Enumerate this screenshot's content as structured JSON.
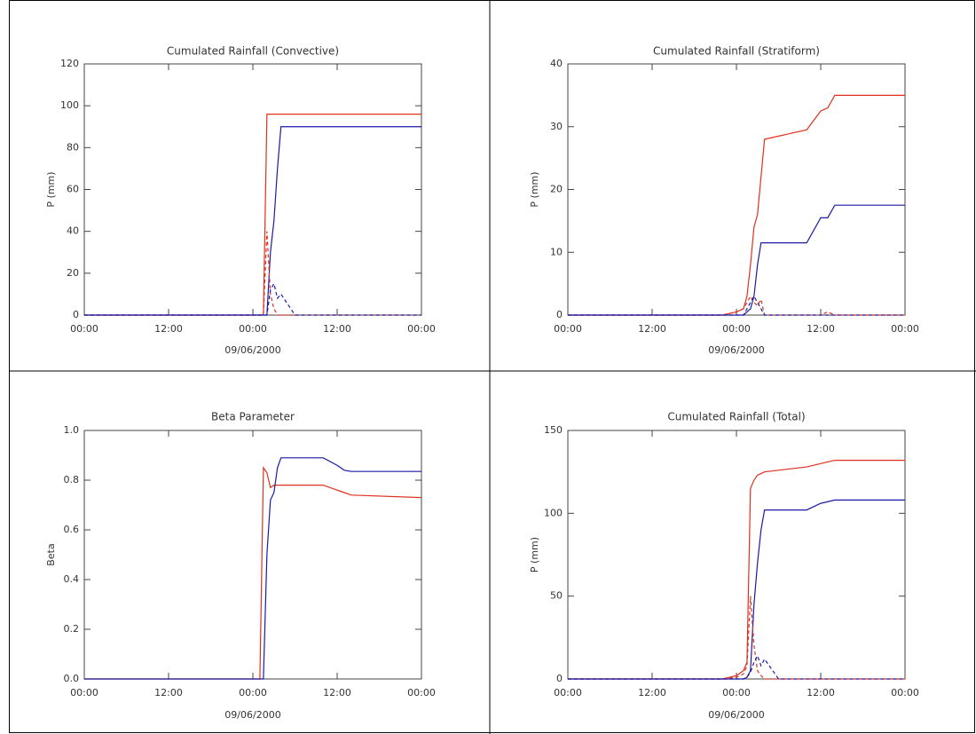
{
  "chart_data": [
    {
      "type": "line",
      "title": "Cumulated Rainfall (Convective)",
      "ylabel": "P (mm)",
      "xlabel": "09/06/2000",
      "x": [
        0,
        22,
        24,
        25,
        25.5,
        26,
        26.5,
        27,
        27.5,
        28,
        30,
        34,
        36,
        37,
        38,
        48
      ],
      "xlim": [
        0,
        48
      ],
      "xticks": [
        {
          "value": 0,
          "label": "00:00"
        },
        {
          "value": 12,
          "label": "12:00"
        },
        {
          "value": 24,
          "label": "00:00"
        },
        {
          "value": 36,
          "label": "12:00"
        },
        {
          "value": 48,
          "label": "00:00"
        }
      ],
      "ylim": [
        0,
        120
      ],
      "yticks": [
        0,
        20,
        40,
        60,
        80,
        100,
        120
      ],
      "series": [
        {
          "color": "#e0301e",
          "dash": false,
          "values": [
            0,
            0,
            0,
            0,
            0,
            96,
            96,
            96,
            96,
            96,
            96,
            96,
            96,
            96,
            96,
            96
          ]
        },
        {
          "color": "#1a1aa6",
          "dash": false,
          "values": [
            0,
            0,
            0,
            0,
            0,
            0,
            30,
            45,
            70,
            90,
            90,
            90,
            90,
            90,
            90,
            90
          ]
        },
        {
          "color": "#e0301e",
          "dash": true,
          "values": [
            0,
            0,
            0,
            0,
            0,
            40,
            10,
            3,
            0,
            0,
            0,
            0,
            0,
            0,
            0,
            0
          ]
        },
        {
          "color": "#1a1aa6",
          "dash": true,
          "values": [
            0,
            0,
            0,
            0,
            0,
            0,
            12,
            15,
            8,
            10,
            0,
            0,
            0,
            0,
            0,
            0
          ]
        }
      ]
    },
    {
      "type": "line",
      "title": "Cumulated Rainfall (Stratiform)",
      "ylabel": "P (mm)",
      "xlabel": "09/06/2000",
      "x": [
        0,
        22,
        24,
        25,
        25.5,
        26,
        26.5,
        27,
        27.5,
        28,
        30,
        34,
        36,
        37,
        38,
        48
      ],
      "xlim": [
        0,
        48
      ],
      "xticks": [
        {
          "value": 0,
          "label": "00:00"
        },
        {
          "value": 12,
          "label": "12:00"
        },
        {
          "value": 24,
          "label": "00:00"
        },
        {
          "value": 36,
          "label": "12:00"
        },
        {
          "value": 48,
          "label": "00:00"
        }
      ],
      "ylim": [
        0,
        40
      ],
      "yticks": [
        0,
        10,
        20,
        30,
        40
      ],
      "series": [
        {
          "color": "#e0301e",
          "dash": false,
          "values": [
            0,
            0,
            0.5,
            1,
            3,
            8,
            14,
            16,
            22,
            28,
            28.5,
            29.5,
            32.5,
            33,
            35,
            35
          ]
        },
        {
          "color": "#1a1aa6",
          "dash": false,
          "values": [
            0,
            0,
            0,
            0,
            0.5,
            1,
            3,
            8,
            11.5,
            11.5,
            11.5,
            11.5,
            15.5,
            15.5,
            17.5,
            17.5
          ]
        },
        {
          "color": "#e0301e",
          "dash": true,
          "values": [
            0,
            0,
            0.5,
            1,
            2,
            3,
            2,
            1.5,
            2.5,
            0,
            0,
            0,
            0,
            0.5,
            0,
            0
          ]
        },
        {
          "color": "#1a1aa6",
          "dash": true,
          "values": [
            0,
            0,
            0,
            0,
            1,
            2,
            3,
            2,
            1,
            0,
            0,
            0,
            0,
            0,
            0,
            0
          ]
        }
      ]
    },
    {
      "type": "line",
      "title": "Beta Parameter",
      "ylabel": "Beta",
      "xlabel": "09/06/2000",
      "x": [
        0,
        22,
        24,
        25,
        25.5,
        26,
        26.5,
        27,
        27.5,
        28,
        30,
        34,
        36,
        37,
        38,
        48
      ],
      "xlim": [
        0,
        48
      ],
      "xticks": [
        {
          "value": 0,
          "label": "00:00"
        },
        {
          "value": 12,
          "label": "12:00"
        },
        {
          "value": 24,
          "label": "00:00"
        },
        {
          "value": 36,
          "label": "12:00"
        },
        {
          "value": 48,
          "label": "00:00"
        }
      ],
      "ylim": [
        0,
        1
      ],
      "yticks": [
        {
          "value": 0,
          "label": "0.0"
        },
        {
          "value": 0.2,
          "label": "0.2"
        },
        {
          "value": 0.4,
          "label": "0.4"
        },
        {
          "value": 0.6,
          "label": "0.6"
        },
        {
          "value": 0.8,
          "label": "0.8"
        },
        {
          "value": 1,
          "label": "1.0"
        }
      ],
      "series": [
        {
          "color": "#e0301e",
          "dash": false,
          "values": [
            0,
            0,
            0,
            0,
            0.85,
            0.83,
            0.77,
            0.78,
            0.78,
            0.78,
            0.78,
            0.78,
            0.76,
            0.75,
            0.74,
            0.73
          ]
        },
        {
          "color": "#1a1aa6",
          "dash": false,
          "values": [
            0,
            0,
            0,
            0,
            0,
            0.5,
            0.72,
            0.75,
            0.85,
            0.89,
            0.89,
            0.89,
            0.86,
            0.84,
            0.835,
            0.835
          ]
        }
      ]
    },
    {
      "type": "line",
      "title": "Cumulated Rainfall (Total)",
      "ylabel": "P (mm)",
      "xlabel": "09/06/2000",
      "x": [
        0,
        22,
        24,
        25,
        25.5,
        26,
        26.5,
        27,
        27.5,
        28,
        30,
        34,
        36,
        37,
        38,
        48
      ],
      "xlim": [
        0,
        48
      ],
      "xticks": [
        {
          "value": 0,
          "label": "00:00"
        },
        {
          "value": 12,
          "label": "12:00"
        },
        {
          "value": 24,
          "label": "00:00"
        },
        {
          "value": 36,
          "label": "12:00"
        },
        {
          "value": 48,
          "label": "00:00"
        }
      ],
      "ylim": [
        0,
        150
      ],
      "yticks": [
        0,
        50,
        100,
        150
      ],
      "series": [
        {
          "color": "#e0301e",
          "dash": false,
          "values": [
            0,
            0,
            2,
            5,
            10,
            115,
            120,
            123,
            124,
            125,
            126,
            128,
            130,
            131,
            132,
            132
          ]
        },
        {
          "color": "#1a1aa6",
          "dash": false,
          "values": [
            0,
            0,
            0,
            0,
            1,
            5,
            45,
            70,
            90,
            102,
            102,
            102,
            106,
            107,
            108,
            108
          ]
        },
        {
          "color": "#e0301e",
          "dash": true,
          "values": [
            0,
            0,
            1,
            3,
            8,
            50,
            20,
            5,
            2,
            0,
            0,
            0,
            0,
            0,
            0,
            0
          ]
        },
        {
          "color": "#1a1aa6",
          "dash": true,
          "values": [
            0,
            0,
            0,
            0,
            1,
            4,
            10,
            14,
            8,
            12,
            0,
            0,
            0,
            0,
            0,
            0
          ]
        }
      ]
    }
  ]
}
